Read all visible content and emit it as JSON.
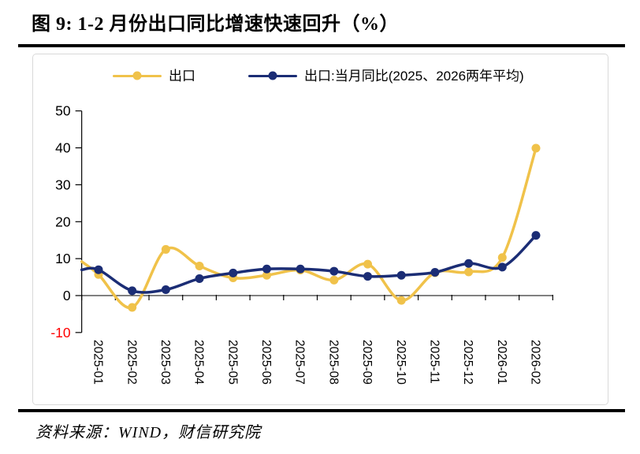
{
  "title": "图 9: 1-2 月份出口同比增速快速回升（%）",
  "source_note": "资料来源：WIND，财信研究院",
  "legend": {
    "items": [
      {
        "label": "出口",
        "color_key": "export"
      },
      {
        "label": "出口:当月同比(2025、2026两年平均)",
        "color_key": "average"
      }
    ]
  },
  "colors": {
    "export": "#F0C24A",
    "average": "#1B2D75",
    "axis": "#000000",
    "negative_tick_label": "#FF0000",
    "chart_border": "#D9D9D9"
  },
  "chart_data": {
    "type": "line",
    "title": "1-2 月份出口同比增速快速回升（%）",
    "categories": [
      "2025-01",
      "2025-02",
      "2025-03",
      "2025-04",
      "2025-05",
      "2025-06",
      "2025-07",
      "2025-08",
      "2025-09",
      "2025-10",
      "2025-11",
      "2025-12",
      "2026-01",
      "2026-02"
    ],
    "series": [
      {
        "name": "出口",
        "color_key": "export",
        "edge_start_value": 9.2,
        "values": [
          5.7,
          -3.2,
          12.5,
          8.0,
          4.8,
          5.5,
          6.9,
          4.2,
          8.5,
          -1.3,
          6.2,
          6.4,
          10.3,
          39.9
        ]
      },
      {
        "name": "出口:当月同比(2025、2026两年平均)",
        "color_key": "average",
        "edge_start_value": 7.0,
        "values": [
          7.0,
          1.3,
          1.6,
          4.6,
          6.1,
          7.2,
          7.2,
          6.6,
          5.2,
          5.5,
          6.3,
          8.7,
          7.7,
          16.3
        ]
      }
    ],
    "ylim": [
      -10,
      50
    ],
    "yticks": [
      50,
      40,
      30,
      20,
      10,
      0,
      -10
    ],
    "grid": false,
    "legend_position": "top",
    "smoothed_lines": true
  }
}
